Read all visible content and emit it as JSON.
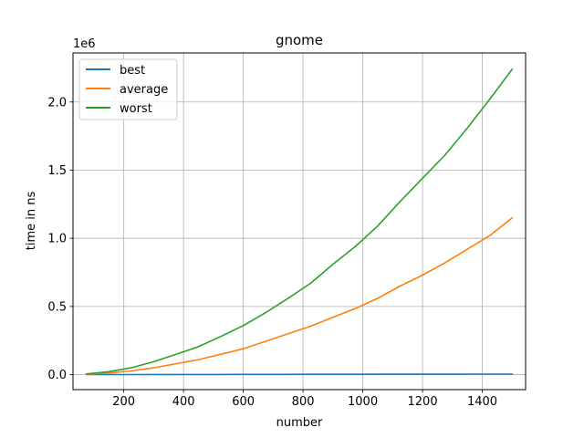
{
  "chart_data": {
    "type": "line",
    "title": "gnome",
    "xlabel": "number",
    "ylabel": "time in ns",
    "y_offset_label": "1e6",
    "xlim": [
      30,
      1545
    ],
    "ylim": [
      -110000,
      2360000
    ],
    "x_ticks": [
      200,
      400,
      600,
      800,
      1000,
      1200,
      1400
    ],
    "x_tick_labels": [
      "200",
      "400",
      "600",
      "800",
      "1000",
      "1200",
      "1400"
    ],
    "y_ticks": [
      0,
      500000,
      1000000,
      1500000,
      2000000
    ],
    "y_tick_labels": [
      "0.0",
      "0.5",
      "1.0",
      "1.5",
      "2.0"
    ],
    "grid": true,
    "legend_position": "top-left",
    "series": [
      {
        "name": "best",
        "color": "#1f77b4",
        "x": [
          75,
          150,
          225,
          300,
          375,
          450,
          525,
          600,
          675,
          750,
          825,
          900,
          975,
          1050,
          1125,
          1200,
          1275,
          1350,
          1425,
          1500
        ],
        "y": [
          200,
          400,
          600,
          800,
          1000,
          1200,
          1400,
          1600,
          1800,
          2000,
          2200,
          2400,
          2600,
          2800,
          3000,
          3200,
          3400,
          3600,
          3800,
          4000
        ]
      },
      {
        "name": "average",
        "color": "#ff7f0e",
        "x": [
          75,
          150,
          225,
          300,
          375,
          450,
          525,
          600,
          675,
          750,
          825,
          900,
          975,
          1050,
          1125,
          1200,
          1275,
          1350,
          1425,
          1500
        ],
        "y": [
          3000,
          12000,
          27000,
          50000,
          80000,
          110000,
          150000,
          190000,
          245000,
          300000,
          355000,
          420000,
          485000,
          560000,
          650000,
          730000,
          820000,
          920000,
          1020000,
          1150000
        ]
      },
      {
        "name": "worst",
        "color": "#2ca02c",
        "x": [
          75,
          150,
          225,
          300,
          375,
          450,
          525,
          600,
          675,
          750,
          825,
          900,
          975,
          1050,
          1125,
          1200,
          1275,
          1350,
          1425,
          1500
        ],
        "y": [
          5000,
          22000,
          50000,
          95000,
          150000,
          205000,
          280000,
          360000,
          455000,
          560000,
          670000,
          810000,
          940000,
          1090000,
          1270000,
          1440000,
          1610000,
          1810000,
          2020000,
          2240000
        ]
      }
    ]
  }
}
